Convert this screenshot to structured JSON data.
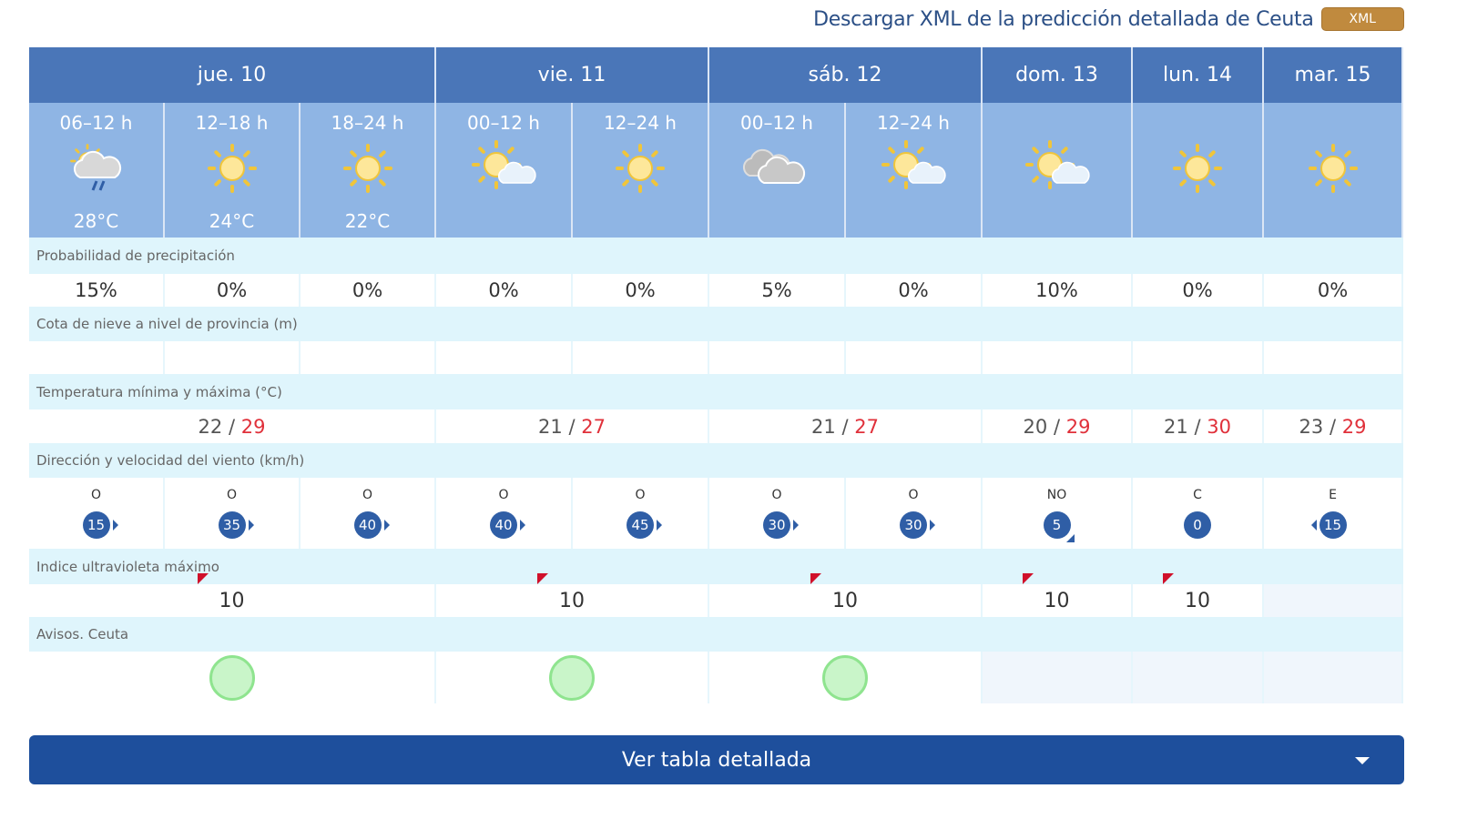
{
  "header": {
    "download_text": "Descargar XML de la predicción detallada de Ceuta",
    "xml_button": "XML"
  },
  "days": [
    {
      "label": "jue. 10",
      "span": 3,
      "min": "22",
      "max": "29",
      "uv": "10",
      "aviso": true
    },
    {
      "label": "vie. 11",
      "span": 2,
      "min": "21",
      "max": "27",
      "uv": "10",
      "aviso": true
    },
    {
      "label": "sáb. 12",
      "span": 2,
      "min": "21",
      "max": "27",
      "uv": "10",
      "aviso": true
    },
    {
      "label": "dom. 13",
      "span": 1,
      "min": "20",
      "max": "29",
      "uv": "10",
      "aviso": false
    },
    {
      "label": "lun. 14",
      "span": 1,
      "min": "21",
      "max": "30",
      "uv": "10",
      "aviso": false
    },
    {
      "label": "mar. 15",
      "span": 1,
      "min": "23",
      "max": "29",
      "uv": "",
      "aviso": false
    }
  ],
  "periods": [
    {
      "period": "06–12 h",
      "icon": "cloud-rain-sun-icon",
      "temp": "28°C",
      "precip": "15%",
      "wind_dir": "O",
      "wind_speed": "15"
    },
    {
      "period": "12–18 h",
      "icon": "sun-icon",
      "temp": "24°C",
      "precip": "0%",
      "wind_dir": "O",
      "wind_speed": "35"
    },
    {
      "period": "18–24 h",
      "icon": "sun-icon",
      "temp": "22°C",
      "precip": "0%",
      "wind_dir": "O",
      "wind_speed": "40"
    },
    {
      "period": "00–12 h",
      "icon": "sun-cloud-icon",
      "temp": "",
      "precip": "0%",
      "wind_dir": "O",
      "wind_speed": "40"
    },
    {
      "period": "12–24 h",
      "icon": "sun-icon",
      "temp": "",
      "precip": "0%",
      "wind_dir": "O",
      "wind_speed": "45"
    },
    {
      "period": "00–12 h",
      "icon": "cloud-icon",
      "temp": "",
      "precip": "5%",
      "wind_dir": "O",
      "wind_speed": "30"
    },
    {
      "period": "12–24 h",
      "icon": "sun-cloud-icon",
      "temp": "",
      "precip": "0%",
      "wind_dir": "O",
      "wind_speed": "30"
    },
    {
      "period": "",
      "icon": "sun-cloud-icon",
      "temp": "",
      "precip": "10%",
      "wind_dir": "NO",
      "wind_speed": "5"
    },
    {
      "period": "",
      "icon": "sun-icon",
      "temp": "",
      "precip": "0%",
      "wind_dir": "C",
      "wind_speed": "0"
    },
    {
      "period": "",
      "icon": "sun-icon",
      "temp": "",
      "precip": "0%",
      "wind_dir": "E",
      "wind_speed": "15"
    }
  ],
  "labels": {
    "precip": "Probabilidad de precipitación",
    "snow": "Cota de nieve a nivel de provincia (m)",
    "temp": "Temperatura mínima y máxima (°C)",
    "wind": "Dirección y velocidad del viento (km/h)",
    "uv": "Indice ultravioleta máximo",
    "avisos": "Avisos. Ceuta"
  },
  "temp_separator": " / ",
  "footer": {
    "button": "Ver tabla detallada"
  },
  "colors": {
    "header": "#4a76b8",
    "icon_bg": "#8fb5e4",
    "max_temp": "#e0303a",
    "button": "#1e4f9c",
    "xml": "#c08a3e"
  }
}
